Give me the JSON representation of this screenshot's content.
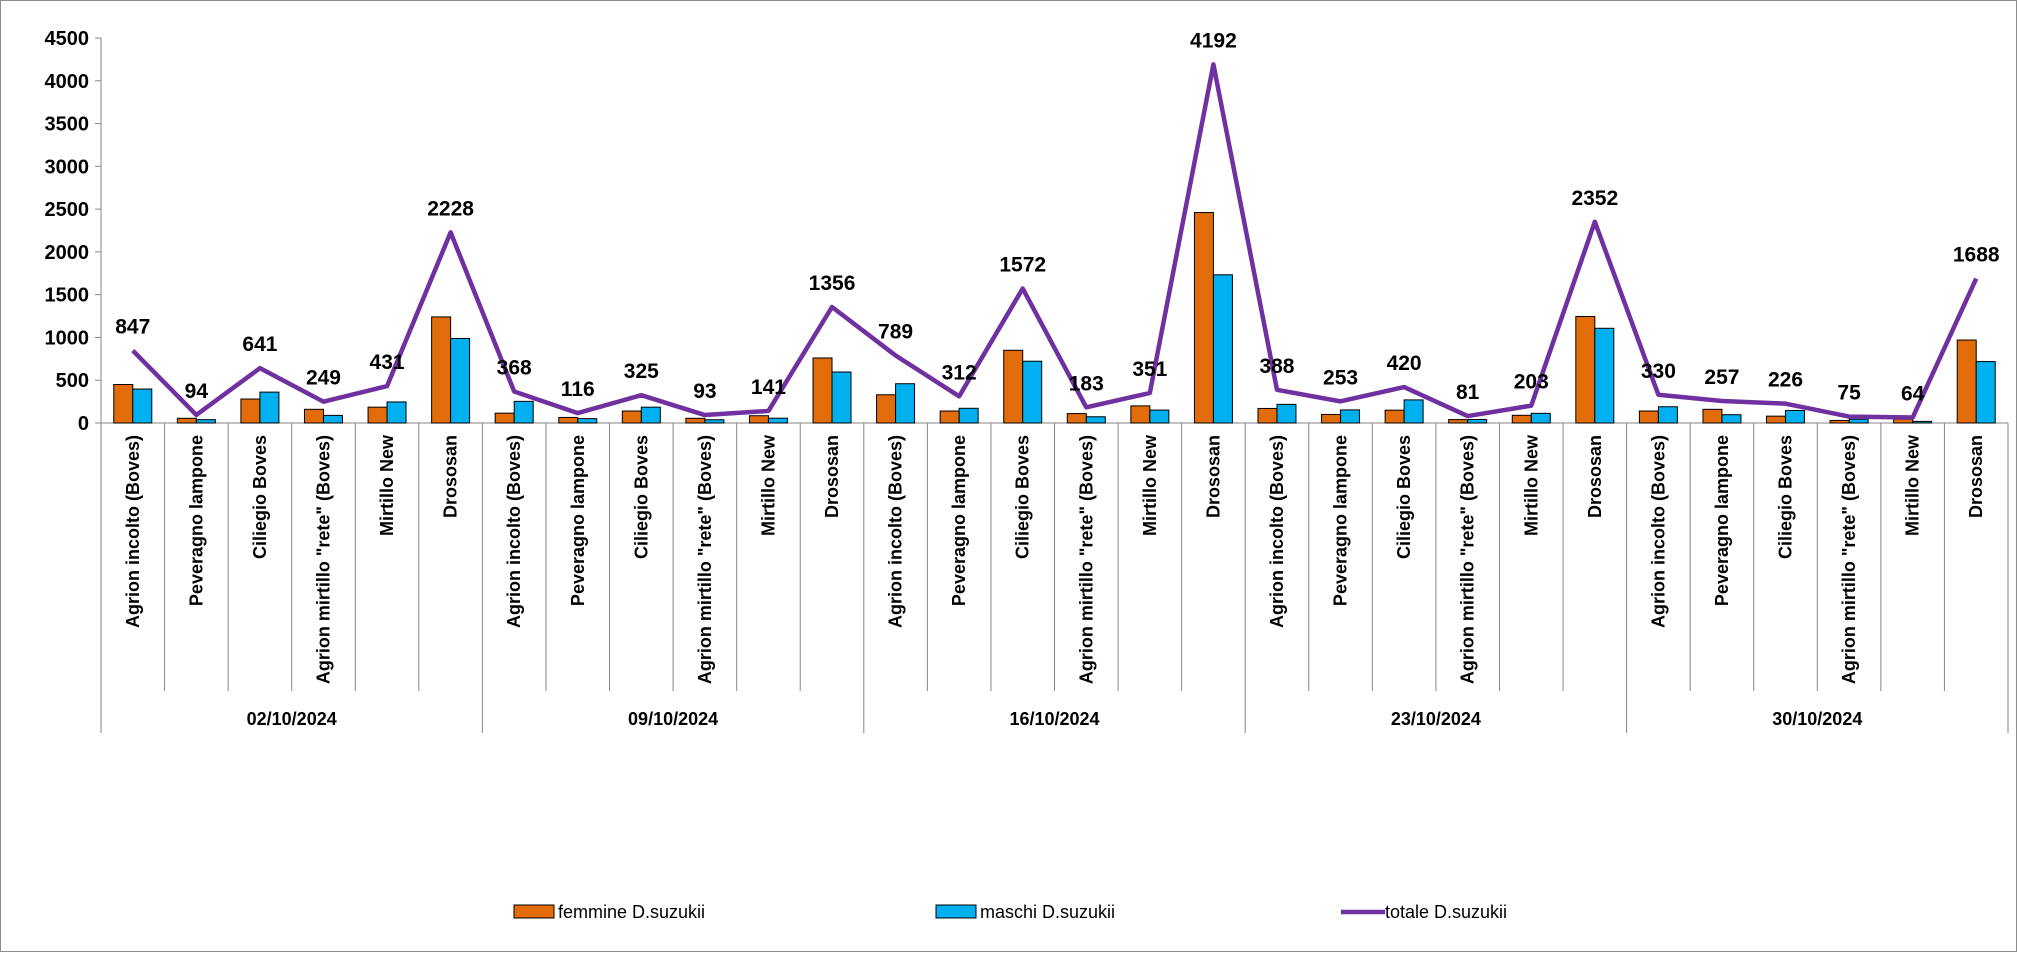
{
  "chart_data": {
    "type": "bar",
    "title": "",
    "xlabel": "",
    "ylabel": "",
    "ylim": [
      0,
      4500
    ],
    "yticks": [
      0,
      500,
      1000,
      1500,
      2000,
      2500,
      3000,
      3500,
      4000,
      4500
    ],
    "grid": false,
    "legend_position": "bottom",
    "groups": [
      {
        "label": "02/10/2024",
        "categories": [
          "Agrion incolto (Boves)",
          "Peveragno lampone",
          "Ciliegio Boves",
          "Agrion mirtillo \"rete\" (Boves)",
          "Mirtillo New",
          "Drososan"
        ]
      },
      {
        "label": "09/10/2024",
        "categories": [
          "Agrion incolto (Boves)",
          "Peveragno lampone",
          "Ciliegio Boves",
          "Agrion mirtillo \"rete\" (Boves)",
          "Mirtillo New",
          "Drososan"
        ]
      },
      {
        "label": "16/10/2024",
        "categories": [
          "Agrion incolto (Boves)",
          "Peveragno lampone",
          "Ciliegio Boves",
          "Agrion mirtillo \"rete\" (Boves)",
          "Mirtillo New",
          "Drososan"
        ]
      },
      {
        "label": "23/10/2024",
        "categories": [
          "Agrion incolto (Boves)",
          "Peveragno lampone",
          "Ciliegio Boves",
          "Agrion mirtillo \"rete\" (Boves)",
          "Mirtillo New",
          "Drososan"
        ]
      },
      {
        "label": "30/10/2024",
        "categories": [
          "Agrion incolto (Boves)",
          "Peveragno lampone",
          "Ciliegio Boves",
          "Agrion mirtillo \"rete\" (Boves)",
          "Mirtillo New",
          "Drososan"
        ]
      }
    ],
    "series": [
      {
        "name": "femmine D.suzukii",
        "kind": "bar",
        "color": "#E36C0A",
        "values": [
          450,
          55,
          280,
          160,
          185,
          1240,
          115,
          65,
          140,
          55,
          85,
          760,
          330,
          140,
          850,
          110,
          200,
          2460,
          170,
          100,
          150,
          40,
          90,
          1245,
          140,
          160,
          80,
          30,
          45,
          970
        ]
      },
      {
        "name": "maschi D.suzukii",
        "kind": "bar",
        "color": "#00B0F0",
        "values": [
          397,
          39,
          361,
          89,
          246,
          988,
          253,
          51,
          185,
          38,
          56,
          596,
          459,
          172,
          722,
          73,
          151,
          1732,
          218,
          153,
          270,
          41,
          113,
          1107,
          190,
          97,
          146,
          45,
          19,
          718
        ]
      },
      {
        "name": "totale D.suzukii",
        "kind": "line",
        "color": "#7030A0",
        "values": [
          847,
          94,
          641,
          249,
          431,
          2228,
          368,
          116,
          325,
          93,
          141,
          1356,
          789,
          312,
          1572,
          183,
          351,
          4192,
          388,
          253,
          420,
          81,
          203,
          2352,
          330,
          257,
          226,
          75,
          64,
          1688
        ]
      }
    ]
  }
}
